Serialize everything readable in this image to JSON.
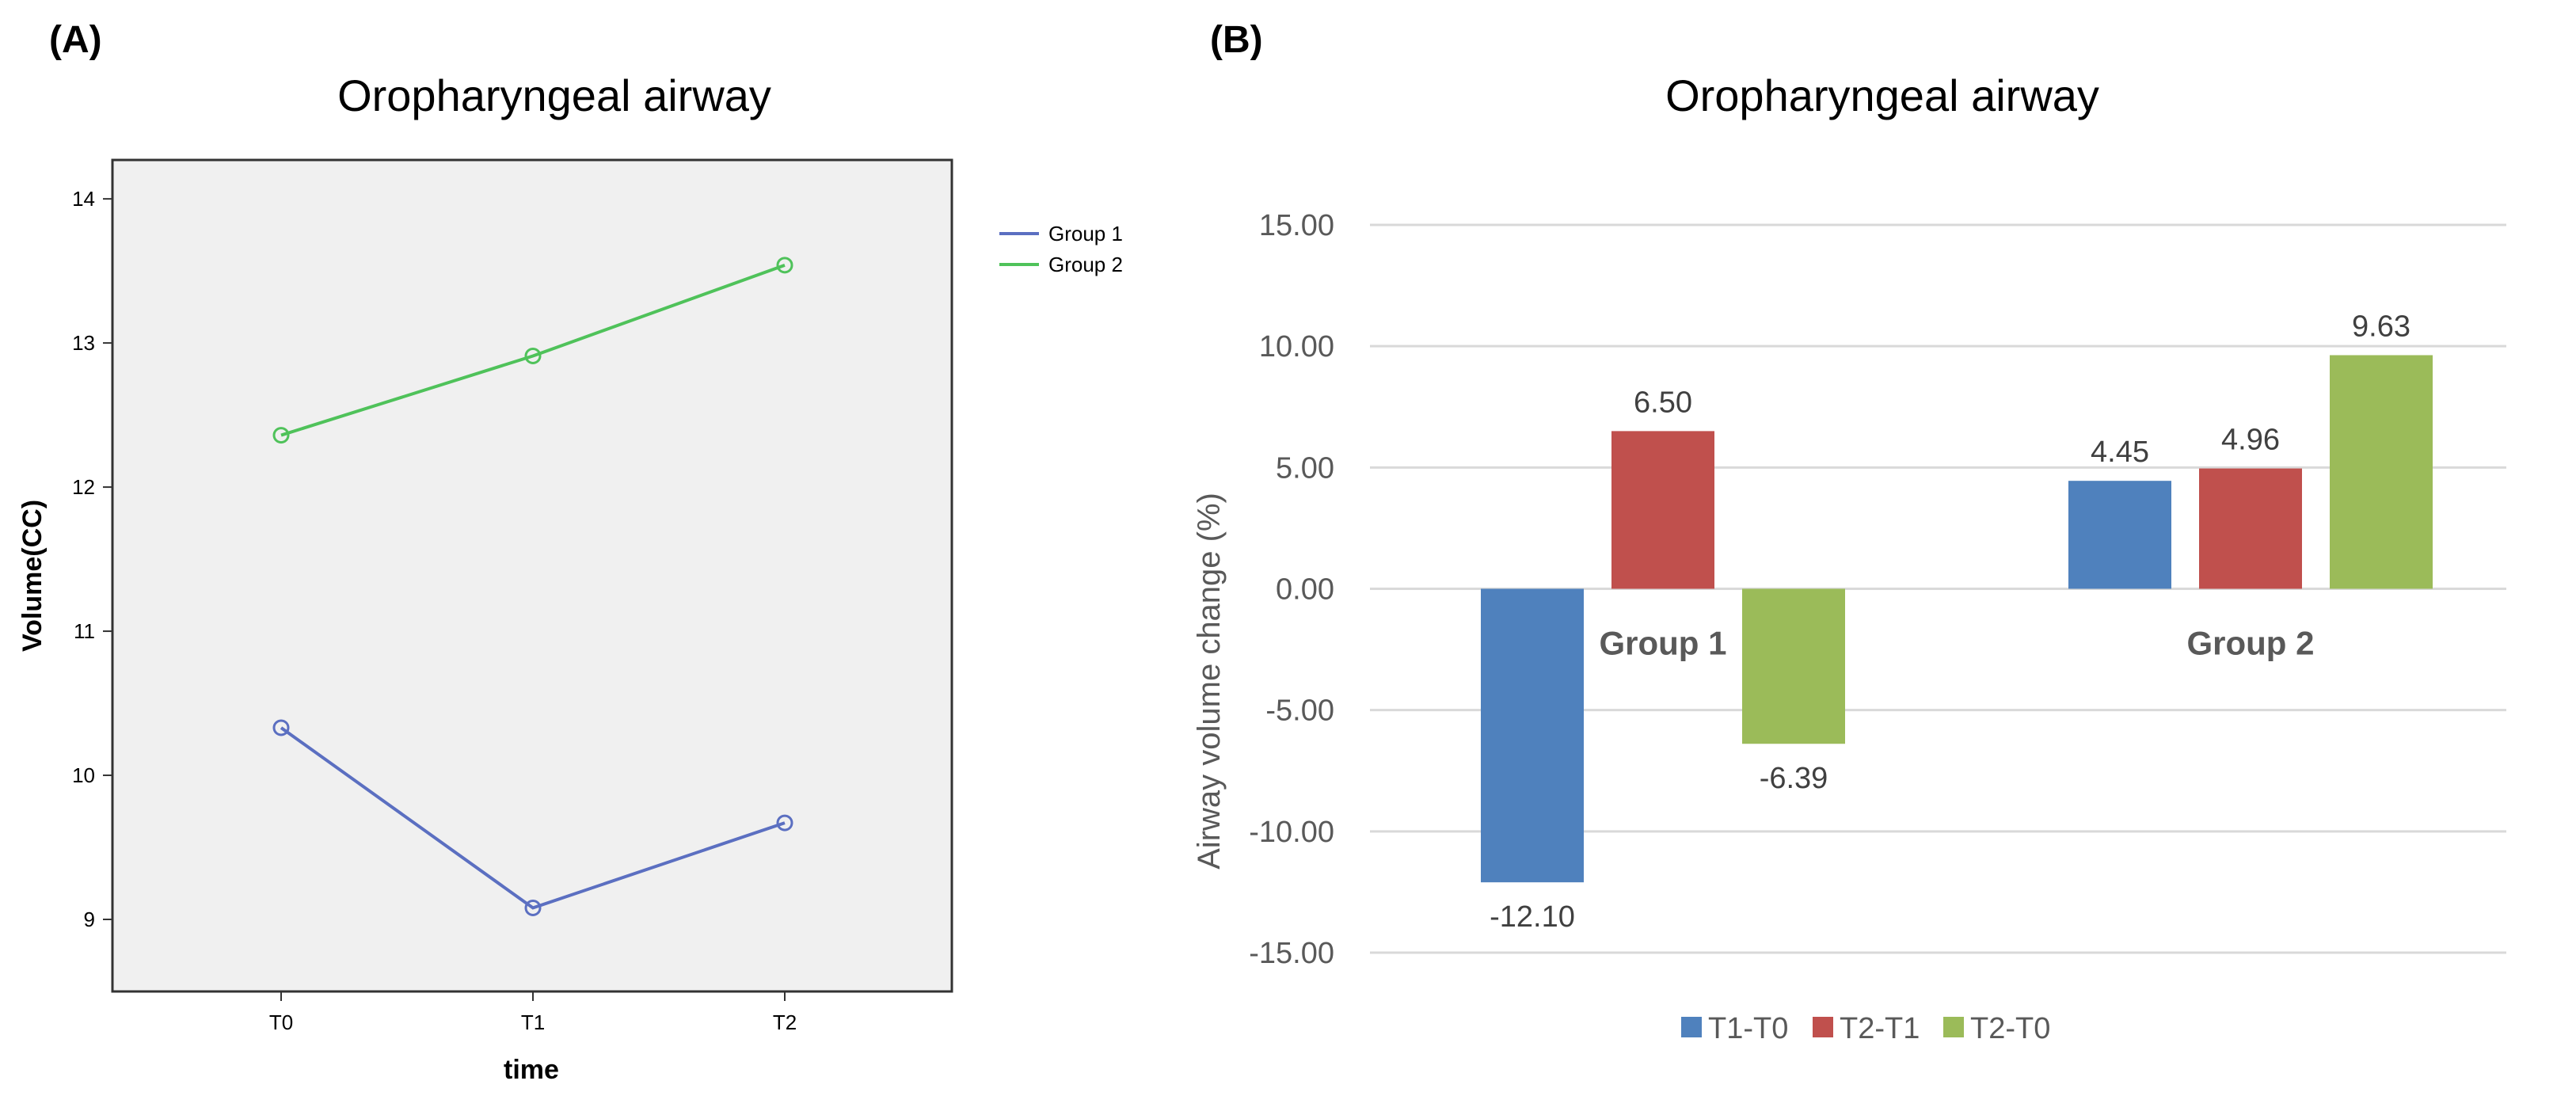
{
  "panels": {
    "a": {
      "label": "(A)"
    },
    "b": {
      "label": "(B)"
    }
  },
  "chart_data": [
    {
      "type": "line",
      "title": "Oropharyngeal airway",
      "xlabel": "time",
      "ylabel": "Volume(CC)",
      "categories": [
        "T0",
        "T1",
        "T2"
      ],
      "series": [
        {
          "name": "Group 1",
          "values": [
            10.33,
            9.08,
            9.67
          ],
          "color": "#5b6fc1"
        },
        {
          "name": "Group 2",
          "values": [
            12.36,
            12.91,
            13.54
          ],
          "color": "#4fc25a"
        }
      ],
      "ylim": [
        8.5,
        14.27
      ],
      "yticks": [
        "9",
        "10",
        "11",
        "12",
        "13",
        "14"
      ],
      "grid": false,
      "legend": "right",
      "background": "#f0f0f0"
    },
    {
      "type": "bar",
      "title": "Oropharyngeal airway",
      "xlabel": "",
      "ylabel": "Airway volume change (%)",
      "categories": [
        "Group 1",
        "Group 2"
      ],
      "series": [
        {
          "name": "T1-T0",
          "values": [
            -12.1,
            4.45
          ],
          "labels": [
            "-12.10",
            "4.45"
          ],
          "color": "#4f81bd"
        },
        {
          "name": "T2-T1",
          "values": [
            6.5,
            4.96
          ],
          "labels": [
            "6.50",
            "4.96"
          ],
          "color": "#c0504d"
        },
        {
          "name": "T2-T0",
          "values": [
            -6.39,
            9.63
          ],
          "labels": [
            "-6.39",
            "9.63"
          ],
          "color": "#9bbb59"
        }
      ],
      "ylim": [
        -15,
        15
      ],
      "yticks": [
        "-15.00",
        "-10.00",
        "-5.00",
        "0.00",
        "5.00",
        "10.00",
        "15.00"
      ],
      "grid": true,
      "legend": "bottom"
    }
  ]
}
